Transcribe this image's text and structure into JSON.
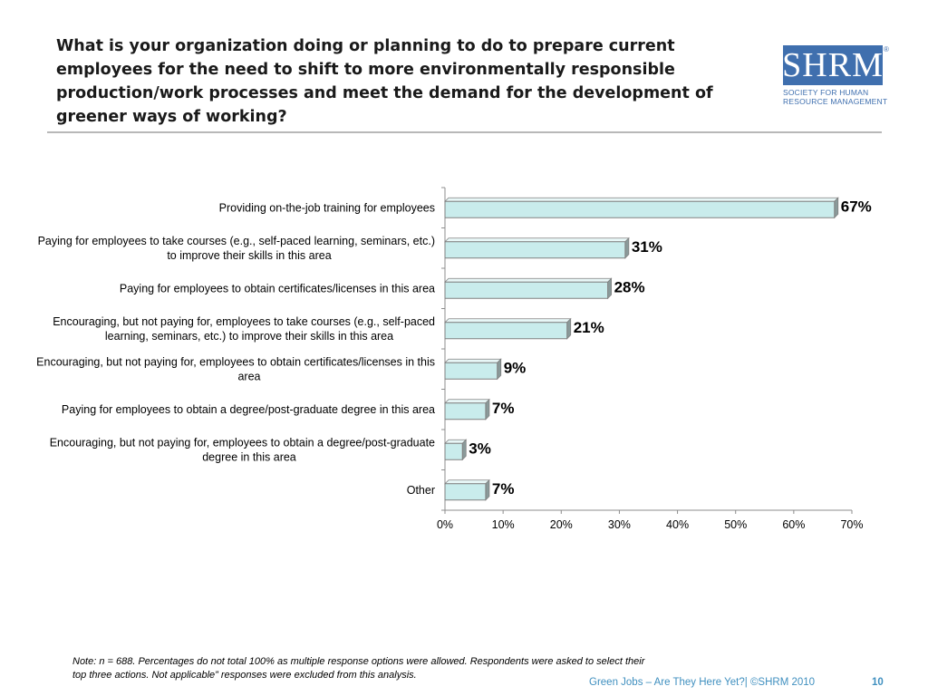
{
  "title": "What is your organization doing or planning to do to prepare current employees for the need to shift to more environmentally responsible production/work processes and meet the demand for the development of greener ways of working?",
  "logo": {
    "mark": "SHRM",
    "registered": "®",
    "subtitle_line1": "Society for Human",
    "subtitle_line2": "Resource Management"
  },
  "chart_data": {
    "type": "bar",
    "orientation": "horizontal",
    "categories": [
      "Providing on-the-job training for employees",
      "Paying for employees to take courses (e.g., self-paced learning, seminars, etc.) to improve their skills in this area",
      "Paying for employees to obtain certificates/licenses in this area",
      "Encouraging, but not paying for, employees to take courses (e.g., self-paced learning, seminars, etc.) to improve their skills in this area",
      "Encouraging, but not paying for, employees to obtain certificates/licenses in this area",
      "Paying for employees to obtain a degree/post-graduate degree in this area",
      "Encouraging, but not paying for, employees to obtain a degree/post-graduate degree in this area",
      "Other"
    ],
    "values": [
      67,
      31,
      28,
      21,
      9,
      7,
      3,
      7
    ],
    "value_labels": [
      "67%",
      "31%",
      "28%",
      "21%",
      "9%",
      "7%",
      "3%",
      "7%"
    ],
    "xlim": [
      0,
      70
    ],
    "xticks": [
      "0%",
      "10%",
      "20%",
      "30%",
      "40%",
      "50%",
      "60%",
      "70%"
    ],
    "grid": false,
    "bar_color": "#c9ecec",
    "bar_edge_color": "#808080"
  },
  "note": "Note: n = 688. Percentages do not total 100% as multiple response options were allowed. Respondents were asked to select their top three actions. Not applicable” responses were excluded from this analysis.",
  "footer": "Green Jobs – Are They Here Yet?| ©SHRM 2010",
  "page_number": "10"
}
